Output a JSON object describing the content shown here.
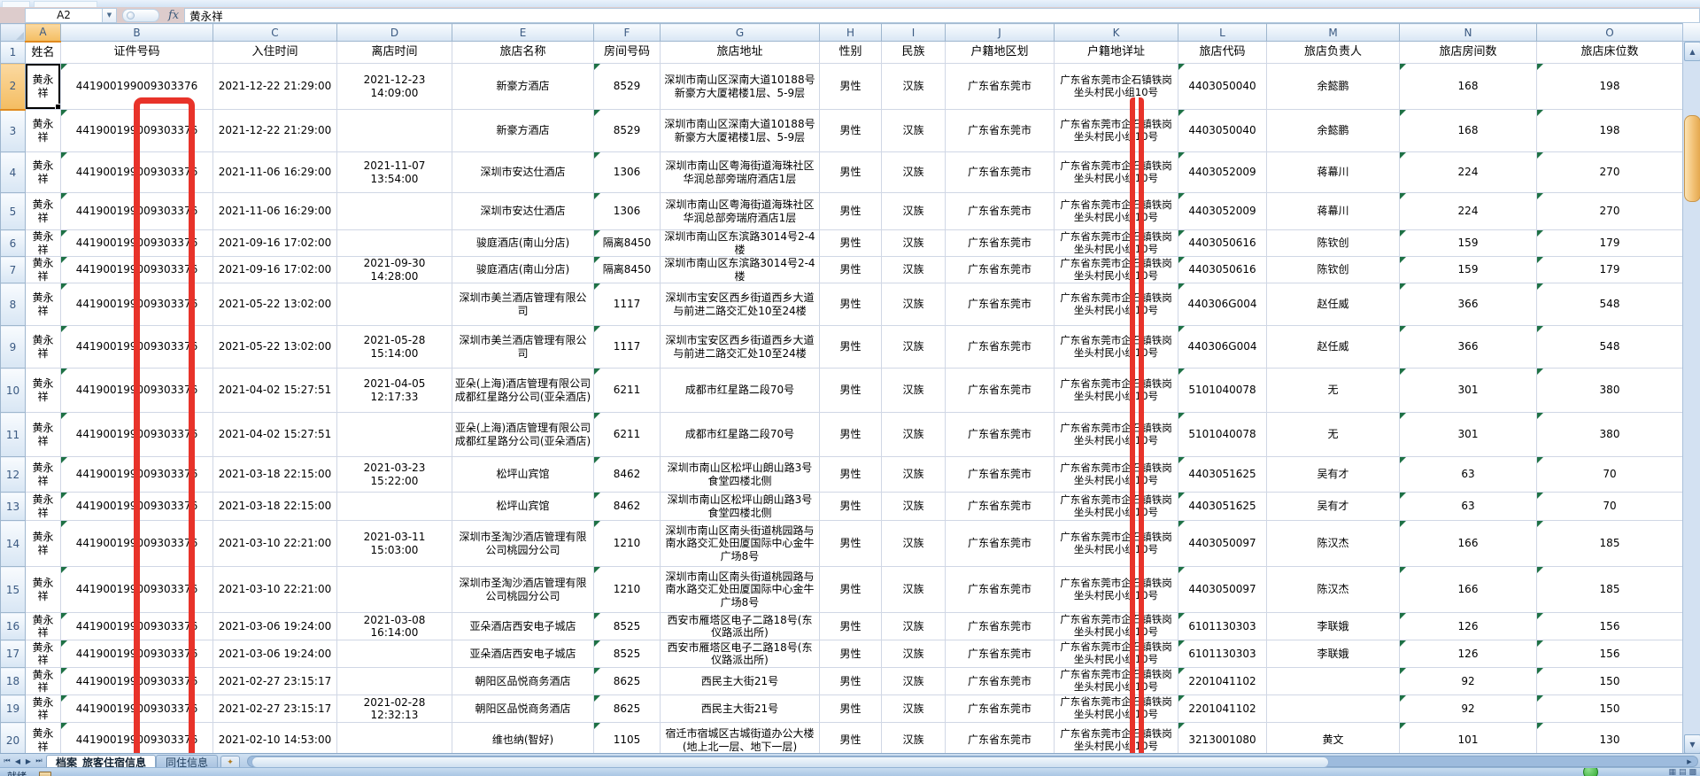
{
  "formula_bar": {
    "name_box": "A2",
    "fx_label": "fx",
    "formula_value": "黄永祥"
  },
  "grid": {
    "column_letters": [
      "A",
      "B",
      "C",
      "D",
      "E",
      "F",
      "G",
      "H",
      "I",
      "J",
      "K",
      "L",
      "M",
      "N",
      "O"
    ],
    "headers": [
      "姓名",
      "证件号码",
      "入住时间",
      "离店时间",
      "旅店名称",
      "房间号码",
      "旅店地址",
      "性别",
      "民族",
      "户籍地区划",
      "户籍地详址",
      "旅店代码",
      "旅店负责人",
      "旅店房间数",
      "旅店床位数"
    ],
    "selected_cell": "A2",
    "rows": [
      {
        "n": "2",
        "cells": [
          "黄永祥",
          "441900199009303376",
          "2021-12-22 21:29:00",
          "2021-12-23 14:09:00",
          "新豪方酒店",
          "8529",
          "深圳市南山区深南大道10188号新豪方大厦裙楼1层、5-9层",
          "男性",
          "汉族",
          "广东省东莞市",
          "广东省东莞市企石镇铁岗坐头村民小组10号",
          "4403050040",
          "余懿鹏",
          "168",
          "198"
        ]
      },
      {
        "n": "3",
        "cells": [
          "黄永祥",
          "441900199009303376",
          "2021-12-22 21:29:00",
          "",
          "新豪方酒店",
          "8529",
          "深圳市南山区深南大道10188号新豪方大厦裙楼1层、5-9层",
          "男性",
          "汉族",
          "广东省东莞市",
          "广东省东莞市企石镇铁岗坐头村民小组10号",
          "4403050040",
          "余懿鹏",
          "168",
          "198"
        ]
      },
      {
        "n": "4",
        "cells": [
          "黄永祥",
          "441900199009303376",
          "2021-11-06 16:29:00",
          "2021-11-07 13:54:00",
          "深圳市安达仕酒店",
          "1306",
          "深圳市南山区粤海街道海珠社区华润总部旁瑞府酒店1层",
          "男性",
          "汉族",
          "广东省东莞市",
          "广东省东莞市企石镇铁岗坐头村民小组10号",
          "4403052009",
          "蒋幕川",
          "224",
          "270"
        ]
      },
      {
        "n": "5",
        "cells": [
          "黄永祥",
          "441900199009303376",
          "2021-11-06 16:29:00",
          "",
          "深圳市安达仕酒店",
          "1306",
          "深圳市南山区粤海街道海珠社区华润总部旁瑞府酒店1层",
          "男性",
          "汉族",
          "广东省东莞市",
          "广东省东莞市企石镇铁岗坐头村民小组10号",
          "4403052009",
          "蒋幕川",
          "224",
          "270"
        ]
      },
      {
        "n": "6",
        "cells": [
          "黄永祥",
          "441900199009303376",
          "2021-09-16 17:02:00",
          "",
          "骏庭酒店(南山分店)",
          "隔离8450",
          "深圳市南山区东滨路3014号2-4楼",
          "男性",
          "汉族",
          "广东省东莞市",
          "广东省东莞市企石镇铁岗坐头村民小组10号",
          "4403050616",
          "陈钦创",
          "159",
          "179"
        ]
      },
      {
        "n": "7",
        "cells": [
          "黄永祥",
          "441900199009303376",
          "2021-09-16 17:02:00",
          "2021-09-30 14:28:00",
          "骏庭酒店(南山分店)",
          "隔离8450",
          "深圳市南山区东滨路3014号2-4楼",
          "男性",
          "汉族",
          "广东省东莞市",
          "广东省东莞市企石镇铁岗坐头村民小组10号",
          "4403050616",
          "陈钦创",
          "159",
          "179"
        ]
      },
      {
        "n": "8",
        "cells": [
          "黄永祥",
          "441900199009303376",
          "2021-05-22 13:02:00",
          "",
          "深圳市美兰酒店管理有限公司",
          "1117",
          "深圳市宝安区西乡街道西乡大道与前进二路交汇处10至24楼",
          "男性",
          "汉族",
          "广东省东莞市",
          "广东省东莞市企石镇铁岗坐头村民小组10号",
          "440306G004",
          "赵任威",
          "366",
          "548"
        ]
      },
      {
        "n": "9",
        "cells": [
          "黄永祥",
          "441900199009303376",
          "2021-05-22 13:02:00",
          "2021-05-28 15:14:00",
          "深圳市美兰酒店管理有限公司",
          "1117",
          "深圳市宝安区西乡街道西乡大道与前进二路交汇处10至24楼",
          "男性",
          "汉族",
          "广东省东莞市",
          "广东省东莞市企石镇铁岗坐头村民小组10号",
          "440306G004",
          "赵任威",
          "366",
          "548"
        ]
      },
      {
        "n": "10",
        "cells": [
          "黄永祥",
          "441900199009303376",
          "2021-04-02 15:27:51",
          "2021-04-05 12:17:33",
          "亚朵(上海)酒店管理有限公司成都红星路分公司(亚朵酒店)",
          "6211",
          "成都市红星路二段70号",
          "男性",
          "汉族",
          "广东省东莞市",
          "广东省东莞市企石镇铁岗坐头村民小组10号",
          "5101040078",
          "无",
          "301",
          "380"
        ]
      },
      {
        "n": "11",
        "cells": [
          "黄永祥",
          "441900199009303376",
          "2021-04-02 15:27:51",
          "",
          "亚朵(上海)酒店管理有限公司成都红星路分公司(亚朵酒店)",
          "6211",
          "成都市红星路二段70号",
          "男性",
          "汉族",
          "广东省东莞市",
          "广东省东莞市企石镇铁岗坐头村民小组10号",
          "5101040078",
          "无",
          "301",
          "380"
        ]
      },
      {
        "n": "12",
        "cells": [
          "黄永祥",
          "441900199009303376",
          "2021-03-18 22:15:00",
          "2021-03-23 15:22:00",
          "松坪山宾馆",
          "8462",
          "深圳市南山区松坪山朗山路3号食堂四楼北侧",
          "男性",
          "汉族",
          "广东省东莞市",
          "广东省东莞市企石镇铁岗坐头村民小组10号",
          "4403051625",
          "吴有才",
          "63",
          "70"
        ]
      },
      {
        "n": "13",
        "cells": [
          "黄永祥",
          "441900199009303376",
          "2021-03-18 22:15:00",
          "",
          "松坪山宾馆",
          "8462",
          "深圳市南山区松坪山朗山路3号食堂四楼北侧",
          "男性",
          "汉族",
          "广东省东莞市",
          "广东省东莞市企石镇铁岗坐头村民小组10号",
          "4403051625",
          "吴有才",
          "63",
          "70"
        ]
      },
      {
        "n": "14",
        "cells": [
          "黄永祥",
          "441900199009303376",
          "2021-03-10 22:21:00",
          "2021-03-11 15:03:00",
          "深圳市圣淘沙酒店管理有限公司桃园分公司",
          "1210",
          "深圳市南山区南头街道桃园路与南水路交汇处田厦国际中心金牛广场8号",
          "男性",
          "汉族",
          "广东省东莞市",
          "广东省东莞市企石镇铁岗坐头村民小组10号",
          "4403050097",
          "陈汉杰",
          "166",
          "185"
        ]
      },
      {
        "n": "15",
        "cells": [
          "黄永祥",
          "441900199009303376",
          "2021-03-10 22:21:00",
          "",
          "深圳市圣淘沙酒店管理有限公司桃园分公司",
          "1210",
          "深圳市南山区南头街道桃园路与南水路交汇处田厦国际中心金牛广场8号",
          "男性",
          "汉族",
          "广东省东莞市",
          "广东省东莞市企石镇铁岗坐头村民小组10号",
          "4403050097",
          "陈汉杰",
          "166",
          "185"
        ]
      },
      {
        "n": "16",
        "cells": [
          "黄永祥",
          "441900199009303376",
          "2021-03-06 19:24:00",
          "2021-03-08 16:14:00",
          "亚朵酒店西安电子城店",
          "8525",
          "西安市雁塔区电子二路18号(东仪路派出所)",
          "男性",
          "汉族",
          "广东省东莞市",
          "广东省东莞市企石镇铁岗坐头村民小组10号",
          "6101130303",
          "李联娥",
          "126",
          "156"
        ]
      },
      {
        "n": "17",
        "cells": [
          "黄永祥",
          "441900199009303376",
          "2021-03-06 19:24:00",
          "",
          "亚朵酒店西安电子城店",
          "8525",
          "西安市雁塔区电子二路18号(东仪路派出所)",
          "男性",
          "汉族",
          "广东省东莞市",
          "广东省东莞市企石镇铁岗坐头村民小组10号",
          "6101130303",
          "李联娥",
          "126",
          "156"
        ]
      },
      {
        "n": "18",
        "cells": [
          "黄永祥",
          "441900199009303376",
          "2021-02-27 23:15:17",
          "",
          "朝阳区品悦商务酒店",
          "8625",
          "西民主大街21号",
          "男性",
          "汉族",
          "广东省东莞市",
          "广东省东莞市企石镇铁岗坐头村民小组10号",
          "2201041102",
          "",
          "92",
          "150"
        ]
      },
      {
        "n": "19",
        "cells": [
          "黄永祥",
          "441900199009303376",
          "2021-02-27 23:15:17",
          "2021-02-28 12:32:13",
          "朝阳区品悦商务酒店",
          "8625",
          "西民主大街21号",
          "男性",
          "汉族",
          "广东省东莞市",
          "广东省东莞市企石镇铁岗坐头村民小组10号",
          "2201041102",
          "",
          "92",
          "150"
        ]
      },
      {
        "n": "20",
        "cells": [
          "黄永祥",
          "441900199009303376",
          "2021-02-10 14:53:00",
          "",
          "维也纳(智好)",
          "1105",
          "宿迁市宿城区古城街道办公大楼(地上北一层、地下一层)",
          "男性",
          "汉族",
          "广东省东莞市",
          "广东省东莞市企石镇铁岗坐头村民小组10号",
          "3213001080",
          "黄文",
          "101",
          "130"
        ]
      }
    ]
  },
  "annotations": {
    "redaction_color": "#e8332a",
    "error_indicator_color": "#1e7145"
  },
  "sheet_tabs": {
    "tabs": [
      {
        "label": "档案_旅客住宿信息",
        "active": true
      },
      {
        "label": "同住信息",
        "active": false
      }
    ]
  },
  "status_bar": {
    "ready_label": "就绪"
  }
}
